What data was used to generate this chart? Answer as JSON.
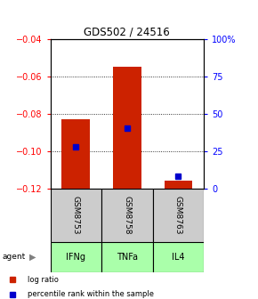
{
  "title": "GDS502 / 24516",
  "ylim_left": [
    -0.12,
    -0.04
  ],
  "ylim_right": [
    0,
    100
  ],
  "yticks_left": [
    -0.12,
    -0.1,
    -0.08,
    -0.06,
    -0.04
  ],
  "yticks_right": [
    0,
    25,
    50,
    75,
    100
  ],
  "yticklabels_right": [
    "0",
    "25",
    "50",
    "75",
    "100%"
  ],
  "samples": [
    "GSM8753",
    "GSM8758",
    "GSM8763"
  ],
  "agents": [
    "IFNg",
    "TNFa",
    "IL4"
  ],
  "bar_tops": [
    -0.083,
    -0.055,
    -0.116
  ],
  "bar_bottom": -0.12,
  "bar_color": "#cc2200",
  "percentile_values": [
    28,
    40,
    8
  ],
  "percentile_color": "#0000cc",
  "bar_width": 0.55,
  "sample_box_color": "#cccccc",
  "agent_box_color": "#aaffaa",
  "legend_ratio_color": "#cc2200",
  "legend_pct_color": "#0000cc",
  "background_color": "#ffffff",
  "grid_ticks": [
    -0.06,
    -0.08,
    -0.1
  ]
}
